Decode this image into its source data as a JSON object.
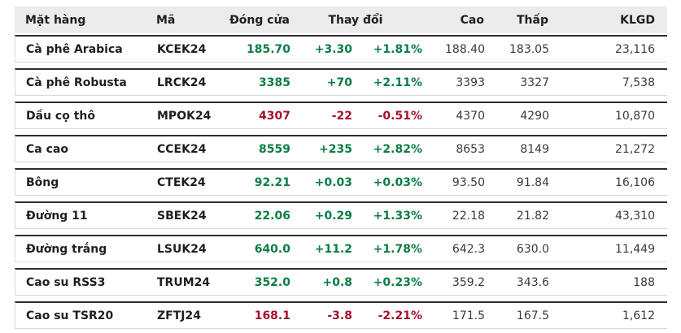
{
  "chart_data": {
    "type": "table",
    "columns": [
      {
        "label": "Mặt hàng"
      },
      {
        "label": "Mã"
      },
      {
        "label": "Đóng cửa"
      },
      {
        "label": "Thay đổi"
      },
      {
        "label": "Cao"
      },
      {
        "label": "Thấp"
      },
      {
        "label": "KLGD"
      }
    ],
    "rows": [
      {
        "name": "Cà phê Arabica",
        "code": "KCEK24",
        "close": "185.70",
        "change": "+3.30",
        "change_pct": "+1.81%",
        "high": "188.40",
        "low": "183.05",
        "volume": "23,116",
        "direction": "up"
      },
      {
        "name": "Cà phê Robusta",
        "code": "LRCK24",
        "close": "3385",
        "change": "+70",
        "change_pct": "+2.11%",
        "high": "3393",
        "low": "3327",
        "volume": "7,538",
        "direction": "up"
      },
      {
        "name": "Dầu cọ thô",
        "code": "MPOK24",
        "close": "4307",
        "change": "-22",
        "change_pct": "-0.51%",
        "high": "4370",
        "low": "4290",
        "volume": "10,870",
        "direction": "down"
      },
      {
        "name": "Ca cao",
        "code": "CCEK24",
        "close": "8559",
        "change": "+235",
        "change_pct": "+2.82%",
        "high": "8653",
        "low": "8149",
        "volume": "21,272",
        "direction": "up"
      },
      {
        "name": "Bông",
        "code": "CTEK24",
        "close": "92.21",
        "change": "+0.03",
        "change_pct": "+0.03%",
        "high": "93.50",
        "low": "91.84",
        "volume": "16,106",
        "direction": "up"
      },
      {
        "name": "Đường 11",
        "code": "SBEK24",
        "close": "22.06",
        "change": "+0.29",
        "change_pct": "+1.33%",
        "high": "22.18",
        "low": "21.82",
        "volume": "43,310",
        "direction": "up"
      },
      {
        "name": "Đường trắng",
        "code": "LSUK24",
        "close": "640.0",
        "change": "+11.2",
        "change_pct": "+1.78%",
        "high": "642.3",
        "low": "630.0",
        "volume": "11,449",
        "direction": "up"
      },
      {
        "name": "Cao su RSS3",
        "code": "TRUM24",
        "close": "352.0",
        "change": "+0.8",
        "change_pct": "+0.23%",
        "high": "359.2",
        "low": "343.6",
        "volume": "188",
        "direction": "up"
      },
      {
        "name": "Cao su TSR20",
        "code": "ZFTJ24",
        "close": "168.1",
        "change": "-3.8",
        "change_pct": "-2.21%",
        "high": "171.5",
        "low": "167.5",
        "volume": "1,612",
        "direction": "down"
      }
    ]
  },
  "theme": {
    "up_color": "#0b7d46",
    "down_color": "#a3122f",
    "header_bg": "#ececec",
    "border_dark": "#2e2e2e",
    "border_light": "#d8d8d8"
  }
}
